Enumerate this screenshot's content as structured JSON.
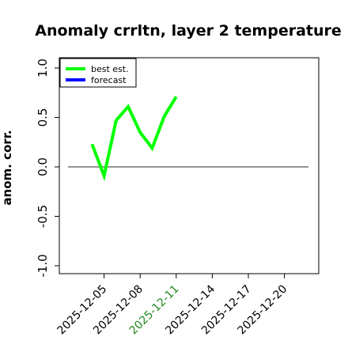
{
  "chart_data": {
    "type": "line",
    "title": "Anomaly crrltn, layer 2 temperature",
    "ylabel": "anom. corr.",
    "xlabel": "",
    "ylim": [
      -1.0,
      1.0
    ],
    "yticks": [
      "-1.0",
      "-0.5",
      "0.0",
      "0.5",
      "1.0"
    ],
    "xticks": [
      {
        "label": "2025-12-05",
        "color": "#000000"
      },
      {
        "label": "2025-12-08",
        "color": "#000000"
      },
      {
        "label": "2025-12-11",
        "color": "#228B22"
      },
      {
        "label": "2025-12-14",
        "color": "#000000"
      },
      {
        "label": "2025-12-17",
        "color": "#000000"
      },
      {
        "label": "2025-12-20",
        "color": "#000000"
      }
    ],
    "xlim": [
      "2025-12-02",
      "2025-12-22"
    ],
    "series": [
      {
        "name": "best est.",
        "color": "#00ff00",
        "x": [
          "2025-12-04",
          "2025-12-05",
          "2025-12-06",
          "2025-12-07",
          "2025-12-08",
          "2025-12-09",
          "2025-12-10",
          "2025-12-11"
        ],
        "values": [
          0.23,
          -0.09,
          0.47,
          0.61,
          0.35,
          0.19,
          0.51,
          0.71
        ]
      },
      {
        "name": "forecast",
        "color": "#0000ff",
        "x": [],
        "values": []
      }
    ],
    "reference_line": {
      "y": 0.0,
      "color": "#555555"
    },
    "legend_position": "top-left",
    "grid": false
  }
}
